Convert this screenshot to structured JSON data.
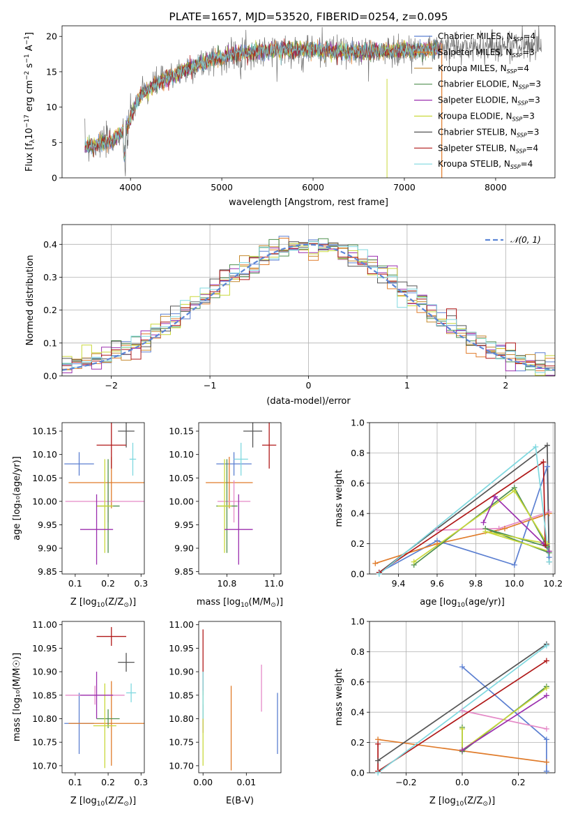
{
  "colors": {
    "Chabrier MILES": "#5b7fd1",
    "Salpeter MILES": "#e07b2a",
    "Kroupa MILES": "#c58a2e",
    "Chabrier ELODIE": "#4f8f4f",
    "Salpeter ELODIE": "#9b2fae",
    "Kroupa ELODIE": "#c9d83a",
    "Chabrier STELIB": "#555555",
    "Salpeter STELIB": "#b01818",
    "Kroupa STELIB": "#7fd8df",
    "pink": "#e58ac7",
    "green2": "#9ad63a"
  },
  "chart_data": [
    {
      "type": "line",
      "title": "PLATE=1657, MJD=53520, FIBERID=0254, z=0.095",
      "xlabel": "wavelength [Angstrom, rest frame]",
      "ylabel": "Flux [f",
      "ylabel_sub": "λ",
      "ylabel_rest": "10",
      "ylabel_sup1": "−17",
      "ylabel_end": " erg cm",
      "ylabel_sup2": "−2",
      "ylabel_s": " s",
      "ylabel_sup3": "−1",
      "ylabel_A": " A",
      "ylabel_sup4": "−1",
      "ylabel_close": "]",
      "xlim": [
        3250,
        8650
      ],
      "ylim": [
        0,
        21.5
      ],
      "xticks": [
        4000,
        5000,
        6000,
        7000,
        8000
      ],
      "yticks": [
        0,
        5,
        10,
        15,
        20
      ],
      "legend_position": "top-right",
      "series": [
        {
          "name": "Chabrier MILES",
          "nssp": "4"
        },
        {
          "name": "Salpeter MILES",
          "nssp": "3"
        },
        {
          "name": "Kroupa MILES",
          "nssp": "4"
        },
        {
          "name": "Chabrier ELODIE",
          "nssp": "3"
        },
        {
          "name": "Salpeter ELODIE",
          "nssp": "3"
        },
        {
          "name": "Kroupa ELODIE",
          "nssp": "3"
        },
        {
          "name": "Chabrier STELIB",
          "nssp": "3"
        },
        {
          "name": "Salpeter STELIB",
          "nssp": "4"
        },
        {
          "name": "Kroupa STELIB",
          "nssp": "4"
        }
      ],
      "continuum": {
        "x": [
          3500,
          3650,
          3800,
          3950,
          4100,
          4300,
          4600,
          4900,
          5200,
          5500,
          5800,
          6100,
          6400,
          6700,
          7000,
          7300,
          7600,
          7900,
          8200,
          8500
        ],
        "y": [
          4.3,
          4.8,
          5.2,
          7.0,
          11.5,
          13.5,
          15.2,
          16.8,
          17.6,
          18.0,
          18.2,
          18.0,
          17.8,
          17.9,
          18.0,
          18.2,
          18.4,
          18.6,
          18.7,
          18.8
        ]
      },
      "model_end_x": 7400,
      "data_start_x": 7400
    },
    {
      "type": "histogram",
      "xlabel": "(data-model)/error",
      "ylabel": "Normed distribution",
      "xlim": [
        -2.5,
        2.5
      ],
      "ylim": [
        0,
        0.46
      ],
      "xticks": [
        -2,
        -1,
        0,
        1,
        2
      ],
      "yticks": [
        0.0,
        0.1,
        0.2,
        0.3,
        0.4
      ],
      "grid": true,
      "reference_label": "𝒩(0, 1)",
      "bin_width": 0.1
    },
    {
      "type": "scatter",
      "xlabel": "Z [log",
      "xlabel_sub": "10",
      "xlabel_rest": "(Z/Z",
      "xlabel_sub2": "⊙",
      "xlabel_end": ")]",
      "ylabel": "age  [log₁₀(age/yr)]",
      "xlim": [
        0.06,
        0.31
      ],
      "ylim": [
        9.845,
        10.168
      ],
      "xticks": [
        0.1,
        0.2,
        0.3
      ],
      "yticks": [
        9.85,
        9.9,
        9.95,
        10.0,
        10.05,
        10.1,
        10.15
      ],
      "points": [
        {
          "x": 0.112,
          "y": 10.08,
          "xerr": 0.045,
          "yerr": 0.025,
          "c": "Chabrier MILES"
        },
        {
          "x": 0.21,
          "y": 10.04,
          "xerr": 0.13,
          "yerr": 0.055,
          "c": "Salpeter MILES"
        },
        {
          "x": 0.2,
          "y": 10.0,
          "xerr": 0.13,
          "yerr": 0.045,
          "c": "pink"
        },
        {
          "x": 0.2,
          "y": 9.99,
          "xerr": 0.035,
          "yerr": 0.1,
          "c": "Chabrier ELODIE"
        },
        {
          "x": 0.19,
          "y": 9.99,
          "xerr": 0.025,
          "yerr": 0.1,
          "c": "Kroupa ELODIE"
        },
        {
          "x": 0.165,
          "y": 9.94,
          "xerr": 0.05,
          "yerr": 0.075,
          "c": "Salpeter ELODIE"
        },
        {
          "x": 0.255,
          "y": 10.15,
          "xerr": 0.025,
          "yerr": 0.035,
          "c": "Chabrier STELIB"
        },
        {
          "x": 0.21,
          "y": 10.12,
          "xerr": 0.045,
          "yerr": 0.05,
          "c": "Salpeter STELIB"
        },
        {
          "x": 0.275,
          "y": 10.09,
          "xerr": 0.01,
          "yerr": 0.035,
          "c": "Kroupa STELIB"
        }
      ]
    },
    {
      "type": "scatter",
      "xlabel": "mass [log",
      "xlabel_sub": "10",
      "xlabel_rest": "(M/M",
      "xlabel_sub2": "⊙",
      "xlabel_end": ")]",
      "xlim": [
        10.68,
        11.03
      ],
      "ylim": [
        9.845,
        10.168
      ],
      "xticks": [
        10.8,
        11.0
      ],
      "yticks": [
        9.85,
        9.9,
        9.95,
        10.0,
        10.05,
        10.1,
        10.15
      ],
      "points": [
        {
          "x": 10.83,
          "y": 10.08,
          "xerr": 0.075,
          "yerr": 0.025,
          "c": "Chabrier MILES"
        },
        {
          "x": 10.81,
          "y": 10.04,
          "xerr": 0.1,
          "yerr": 0.055,
          "c": "Salpeter MILES"
        },
        {
          "x": 10.83,
          "y": 10.0,
          "xerr": 0.07,
          "yerr": 0.045,
          "c": "pink"
        },
        {
          "x": 10.8,
          "y": 9.99,
          "xerr": 0.045,
          "yerr": 0.1,
          "c": "Chabrier ELODIE"
        },
        {
          "x": 10.79,
          "y": 9.99,
          "xerr": 0.03,
          "yerr": 0.1,
          "c": "Kroupa ELODIE"
        },
        {
          "x": 10.85,
          "y": 9.94,
          "xerr": 0.06,
          "yerr": 0.075,
          "c": "Salpeter ELODIE"
        },
        {
          "x": 10.91,
          "y": 10.15,
          "xerr": 0.04,
          "yerr": 0.035,
          "c": "Chabrier STELIB"
        },
        {
          "x": 10.98,
          "y": 10.12,
          "xerr": 0.03,
          "yerr": 0.05,
          "c": "Salpeter STELIB"
        },
        {
          "x": 10.86,
          "y": 10.09,
          "xerr": 0.03,
          "yerr": 0.035,
          "c": "Kroupa STELIB"
        }
      ]
    },
    {
      "type": "line",
      "xlabel": "age  [log",
      "xlabel_sub": "10",
      "xlabel_rest": "(age/yr)]",
      "ylabel": "mass weight",
      "xlim": [
        9.25,
        10.21
      ],
      "ylim": [
        0,
        1.0
      ],
      "xticks": [
        9.4,
        9.6,
        9.8,
        10.0,
        10.2
      ],
      "yticks": [
        0.0,
        0.2,
        0.4,
        0.6,
        0.8,
        1.0
      ],
      "grid": true,
      "series": [
        {
          "c": "Chabrier MILES",
          "x": [
            9.3,
            9.6,
            10.0,
            10.17,
            10.18
          ],
          "y": [
            0.01,
            0.22,
            0.06,
            0.71,
            0.11
          ]
        },
        {
          "c": "Salpeter MILES",
          "x": [
            9.28,
            9.6,
            9.95,
            10.18
          ],
          "y": [
            0.07,
            0.2,
            0.3,
            0.4
          ]
        },
        {
          "c": "pink",
          "x": [
            9.6,
            9.92,
            10.18
          ],
          "y": [
            0.29,
            0.3,
            0.41
          ]
        },
        {
          "c": "Chabrier ELODIE",
          "x": [
            9.48,
            10.0,
            10.17,
            9.85,
            10.18
          ],
          "y": [
            0.06,
            0.57,
            0.18,
            0.3,
            0.14
          ]
        },
        {
          "c": "Kroupa ELODIE",
          "x": [
            9.48,
            10.0,
            10.17,
            9.85,
            10.18
          ],
          "y": [
            0.08,
            0.55,
            0.2,
            0.28,
            0.15
          ]
        },
        {
          "c": "Salpeter ELODIE",
          "x": [
            9.84,
            9.9,
            10.15,
            10.18
          ],
          "y": [
            0.34,
            0.51,
            0.2,
            0.15
          ]
        },
        {
          "c": "Chabrier STELIB",
          "x": [
            9.3,
            10.17,
            10.18
          ],
          "y": [
            0.01,
            0.85,
            0.08
          ]
        },
        {
          "c": "Salpeter STELIB",
          "x": [
            9.3,
            10.15,
            10.16
          ],
          "y": [
            0.01,
            0.74,
            0.19
          ]
        },
        {
          "c": "Kroupa STELIB",
          "x": [
            9.3,
            10.11,
            10.18
          ],
          "y": [
            0.0,
            0.84,
            0.08
          ]
        }
      ]
    },
    {
      "type": "scatter",
      "xlabel": "Z [log",
      "xlabel_sub": "10",
      "xlabel_rest": "(Z/Z",
      "xlabel_sub2": "⊙",
      "xlabel_end": ")]",
      "ylabel": "mass [log₁₀(M/M☉)]",
      "xlim": [
        0.06,
        0.31
      ],
      "ylim": [
        10.685,
        11.007
      ],
      "xticks": [
        0.1,
        0.2,
        0.3
      ],
      "yticks": [
        10.7,
        10.75,
        10.8,
        10.85,
        10.9,
        10.95,
        11.0
      ],
      "points": [
        {
          "x": 0.112,
          "y": 10.79,
          "xerr": 0.045,
          "yerr": 0.065,
          "c": "Chabrier MILES"
        },
        {
          "x": 0.21,
          "y": 10.79,
          "xerr": 0.13,
          "yerr": 0.09,
          "c": "Salpeter MILES"
        },
        {
          "x": 0.16,
          "y": 10.85,
          "xerr": 0.09,
          "yerr": 0.02,
          "c": "pink"
        },
        {
          "x": 0.2,
          "y": 10.8,
          "xerr": 0.035,
          "yerr": 0.02,
          "c": "Chabrier ELODIE"
        },
        {
          "x": 0.19,
          "y": 10.785,
          "xerr": 0.035,
          "yerr": 0.09,
          "c": "Kroupa ELODIE"
        },
        {
          "x": 0.165,
          "y": 10.85,
          "xerr": 0.05,
          "yerr": 0.05,
          "c": "Salpeter ELODIE"
        },
        {
          "x": 0.255,
          "y": 10.92,
          "xerr": 0.025,
          "yerr": 0.02,
          "c": "Chabrier STELIB"
        },
        {
          "x": 0.21,
          "y": 10.975,
          "xerr": 0.045,
          "yerr": 0.02,
          "c": "Salpeter STELIB"
        },
        {
          "x": 0.27,
          "y": 10.855,
          "xerr": 0.015,
          "yerr": 0.02,
          "c": "Kroupa STELIB"
        }
      ]
    },
    {
      "type": "scatter",
      "xlabel": "E(B-V)",
      "xlim": [
        -0.001,
        0.018
      ],
      "ylim": [
        10.685,
        11.007
      ],
      "xticks": [
        0.0,
        0.01
      ],
      "tick_labels_x": [
        "0.00",
        "0.01"
      ],
      "yticks": [
        10.7,
        10.75,
        10.8,
        10.85,
        10.9,
        10.95,
        11.0
      ],
      "points": [
        {
          "x": 0.0,
          "y": 10.92,
          "yerr": 0.07,
          "c": "Salpeter STELIB"
        },
        {
          "x": 0.0,
          "y": 10.8,
          "yerr": 0.03,
          "c": "Salpeter ELODIE"
        },
        {
          "x": 0.0,
          "y": 10.78,
          "yerr": 0.08,
          "c": "Kroupa ELODIE"
        },
        {
          "x": 0.0,
          "y": 10.85,
          "yerr": 0.05,
          "c": "Kroupa STELIB"
        },
        {
          "x": 0.0065,
          "y": 10.78,
          "yerr": 0.09,
          "c": "Salpeter MILES"
        },
        {
          "x": 0.0135,
          "y": 10.865,
          "yerr": 0.05,
          "c": "pink"
        },
        {
          "x": 0.0172,
          "y": 10.79,
          "yerr": 0.065,
          "c": "Chabrier MILES"
        }
      ]
    },
    {
      "type": "line",
      "xlabel": "Z [log",
      "xlabel_sub": "10",
      "xlabel_rest": "(Z/Z",
      "xlabel_sub2": "⊙",
      "xlabel_end": ")]",
      "ylabel": "mass weight",
      "xlim": [
        -0.33,
        0.33
      ],
      "ylim": [
        0,
        1.0
      ],
      "xticks": [
        -0.2,
        0.0,
        0.2
      ],
      "yticks": [
        0.0,
        0.2,
        0.4,
        0.6,
        0.8,
        1.0
      ],
      "grid": true,
      "series": [
        {
          "c": "Chabrier MILES",
          "x": [
            0.0,
            0.3,
            0.3
          ],
          "y": [
            0.7,
            0.22,
            0.01
          ]
        },
        {
          "c": "Salpeter MILES",
          "x": [
            -0.3,
            0.3
          ],
          "y": [
            0.22,
            0.07
          ]
        },
        {
          "c": "pink",
          "x": [
            0.0,
            0.3
          ],
          "y": [
            0.41,
            0.29
          ]
        },
        {
          "c": "Chabrier ELODIE",
          "x": [
            0.0,
            0.0,
            0.3
          ],
          "y": [
            0.3,
            0.14,
            0.57
          ]
        },
        {
          "c": "Kroupa ELODIE",
          "x": [
            0.0,
            0.0,
            0.3
          ],
          "y": [
            0.29,
            0.15,
            0.56
          ]
        },
        {
          "c": "Salpeter ELODIE",
          "x": [
            0.0,
            0.3
          ],
          "y": [
            0.15,
            0.51
          ]
        },
        {
          "c": "Chabrier STELIB",
          "x": [
            -0.3,
            0.3
          ],
          "y": [
            0.08,
            0.85
          ]
        },
        {
          "c": "Salpeter STELIB",
          "x": [
            -0.3,
            -0.3,
            0.3
          ],
          "y": [
            0.19,
            0.01,
            0.74
          ]
        },
        {
          "c": "Kroupa STELIB",
          "x": [
            -0.3,
            0.3
          ],
          "y": [
            0.0,
            0.84
          ]
        }
      ]
    }
  ]
}
